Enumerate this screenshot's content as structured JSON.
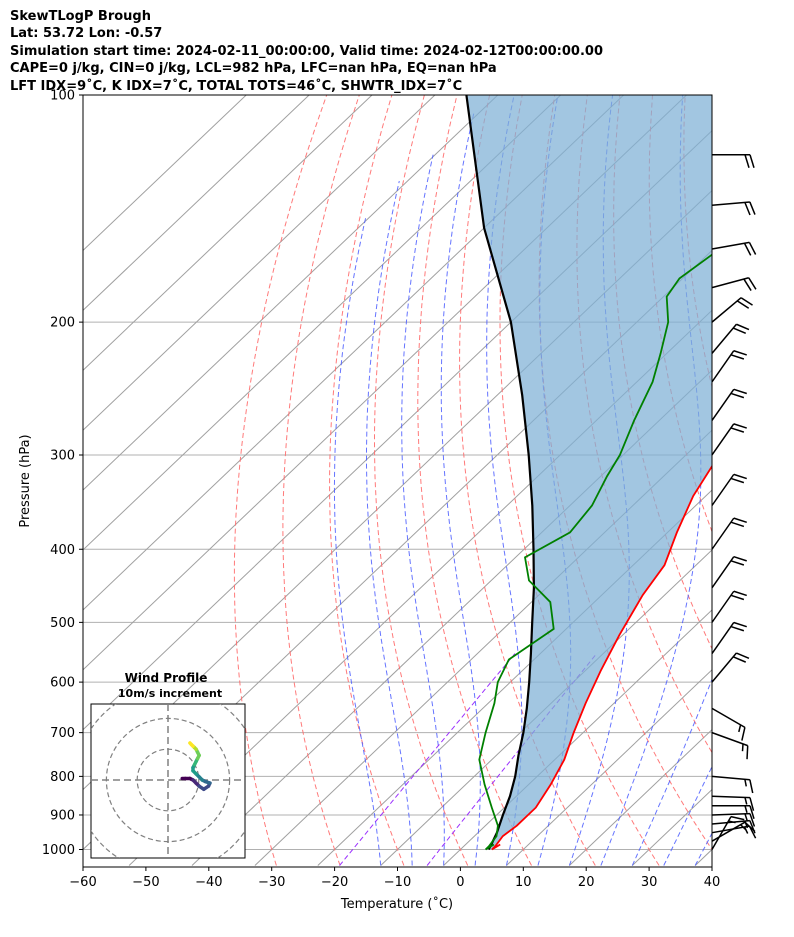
{
  "header": {
    "title": "SkewTLogP Brough",
    "location": "Lat: 53.72   Lon: -0.57",
    "times": "Simulation start time: 2024-02-11_00:00:00, Valid time: 2024-02-12T00:00:00.00",
    "indices1": "CAPE=0 j/kg, CIN=0 j/kg, LCL=982 hPa, LFC=nan hPa, EQ=nan hPa",
    "indices2": "LFT IDX=9˚C, K IDX=7˚C, TOTAL TOTS=46˚C, SHWTR_IDX=7˚C"
  },
  "chart_data": {
    "type": "skewt",
    "xlabel": "Temperature (˚C)",
    "ylabel": "Pressure (hPa)",
    "xlim": [
      -60,
      40
    ],
    "ylim": [
      1050,
      100
    ],
    "x_ticks": [
      -60,
      -50,
      -40,
      -30,
      -20,
      -10,
      0,
      10,
      20,
      30,
      40
    ],
    "x_tick_labels": [
      "−60",
      "−50",
      "−40",
      "−30",
      "−20",
      "−10",
      "0",
      "10",
      "20",
      "30",
      "40"
    ],
    "y_ticks": [
      1000,
      900,
      800,
      700,
      600,
      500,
      400,
      300,
      200,
      100
    ],
    "y_tick_labels": [
      "1000",
      "900",
      "800",
      "700",
      "600",
      "500",
      "400",
      "300",
      "200",
      "100"
    ],
    "colors": {
      "temperature": "#ff0000",
      "dewpoint": "#008000",
      "parcel": "#000000",
      "cin_fill": "#7eb0d5",
      "dry_adiabat": "#ff6b6b",
      "moist_adiabat": "#4a5cff",
      "mixing_ratio": "#9b30ff",
      "isotherm": "#a0a0a0"
    },
    "temperature": {
      "pressure": [
        985,
        1000,
        990,
        960,
        930,
        880,
        820,
        760,
        700,
        640,
        580,
        520,
        460,
        420,
        380,
        340,
        310,
        290,
        270,
        250,
        230,
        210,
        190,
        170,
        155,
        145,
        140,
        130,
        120,
        110,
        100
      ],
      "temp": [
        5.5,
        5,
        5,
        4.5,
        5,
        5,
        3.5,
        1.5,
        -1.5,
        -4.5,
        -7.5,
        -10.5,
        -13.5,
        -15,
        -18.5,
        -22,
        -24,
        -24.5,
        -23.5,
        -22.5,
        -22.5,
        -22.5,
        -21.5,
        -21.5,
        -22,
        -20.5,
        -19,
        -16.5,
        -13.5,
        -10,
        -8.5
      ]
    },
    "dewpoint": {
      "pressure": [
        985,
        1000,
        990,
        960,
        930,
        880,
        820,
        760,
        700,
        640,
        600,
        560,
        510,
        470,
        440,
        410,
        380,
        350,
        320,
        300,
        270,
        240,
        220,
        200,
        185,
        175,
        160,
        145,
        130,
        115,
        100
      ],
      "dewp": [
        4.5,
        4,
        4,
        3.5,
        2,
        -2,
        -7,
        -12,
        -15.5,
        -19,
        -22,
        -24,
        -22,
        -27,
        -34,
        -38.5,
        -35.5,
        -36.5,
        -39,
        -40.5,
        -44,
        -47.5,
        -51,
        -55,
        -59.5,
        -60.5,
        -59,
        -56.5,
        -55,
        -53.5,
        -53
      ]
    },
    "parcel": {
      "pressure": [
        1000,
        982,
        950,
        900,
        850,
        800,
        750,
        700,
        650,
        600,
        550,
        500,
        450,
        400,
        350,
        300,
        250,
        200,
        150,
        100
      ],
      "temp": [
        4.5,
        4,
        3,
        1,
        -1,
        -3.5,
        -6.5,
        -9.5,
        -13,
        -17,
        -21.5,
        -26.5,
        -32,
        -38.5,
        -46,
        -55,
        -66,
        -80,
        -100,
        -125
      ]
    },
    "wind_barbs": [
      {
        "pressure": 1000,
        "speed_kt": 15,
        "dir_deg": 210
      },
      {
        "pressure": 975,
        "speed_kt": 15,
        "dir_deg": 240
      },
      {
        "pressure": 950,
        "speed_kt": 15,
        "dir_deg": 260
      },
      {
        "pressure": 925,
        "speed_kt": 15,
        "dir_deg": 265
      },
      {
        "pressure": 900,
        "speed_kt": 15,
        "dir_deg": 268
      },
      {
        "pressure": 875,
        "speed_kt": 15,
        "dir_deg": 270
      },
      {
        "pressure": 850,
        "speed_kt": 15,
        "dir_deg": 272
      },
      {
        "pressure": 800,
        "speed_kt": 15,
        "dir_deg": 275
      },
      {
        "pressure": 700,
        "speed_kt": 15,
        "dir_deg": 290
      },
      {
        "pressure": 650,
        "speed_kt": 15,
        "dir_deg": 300
      },
      {
        "pressure": 600,
        "speed_kt": 20,
        "dir_deg": 220
      },
      {
        "pressure": 550,
        "speed_kt": 20,
        "dir_deg": 215
      },
      {
        "pressure": 500,
        "speed_kt": 20,
        "dir_deg": 215
      },
      {
        "pressure": 450,
        "speed_kt": 20,
        "dir_deg": 215
      },
      {
        "pressure": 400,
        "speed_kt": 20,
        "dir_deg": 215
      },
      {
        "pressure": 350,
        "speed_kt": 20,
        "dir_deg": 215
      },
      {
        "pressure": 300,
        "speed_kt": 20,
        "dir_deg": 215
      },
      {
        "pressure": 270,
        "speed_kt": 20,
        "dir_deg": 215
      },
      {
        "pressure": 240,
        "speed_kt": 20,
        "dir_deg": 215
      },
      {
        "pressure": 220,
        "speed_kt": 20,
        "dir_deg": 220
      },
      {
        "pressure": 200,
        "speed_kt": 20,
        "dir_deg": 230
      },
      {
        "pressure": 180,
        "speed_kt": 20,
        "dir_deg": 255
      },
      {
        "pressure": 160,
        "speed_kt": 20,
        "dir_deg": 260
      },
      {
        "pressure": 140,
        "speed_kt": 20,
        "dir_deg": 265
      },
      {
        "pressure": 120,
        "speed_kt": 20,
        "dir_deg": 270
      }
    ],
    "hodograph": {
      "title": "Wind Profile",
      "subtitle": "10m/s increment",
      "rings_ms": [
        10,
        20,
        30
      ],
      "range_ms": 25,
      "u": [
        -3.5,
        -2.5,
        -1,
        0,
        1,
        2,
        3.5,
        5,
        5.5,
        4,
        3,
        2,
        1,
        0,
        0,
        0.5,
        1,
        1.5,
        2,
        1.5,
        1,
        0.5,
        0,
        -0.5,
        -1
      ],
      "v": [
        0.5,
        0.5,
        0.5,
        0,
        -1,
        -2,
        -3,
        -2,
        -1,
        -0.5,
        0,
        1,
        2,
        3,
        4,
        5,
        6,
        7,
        8,
        9,
        10,
        10.5,
        11,
        11.5,
        12
      ]
    }
  }
}
